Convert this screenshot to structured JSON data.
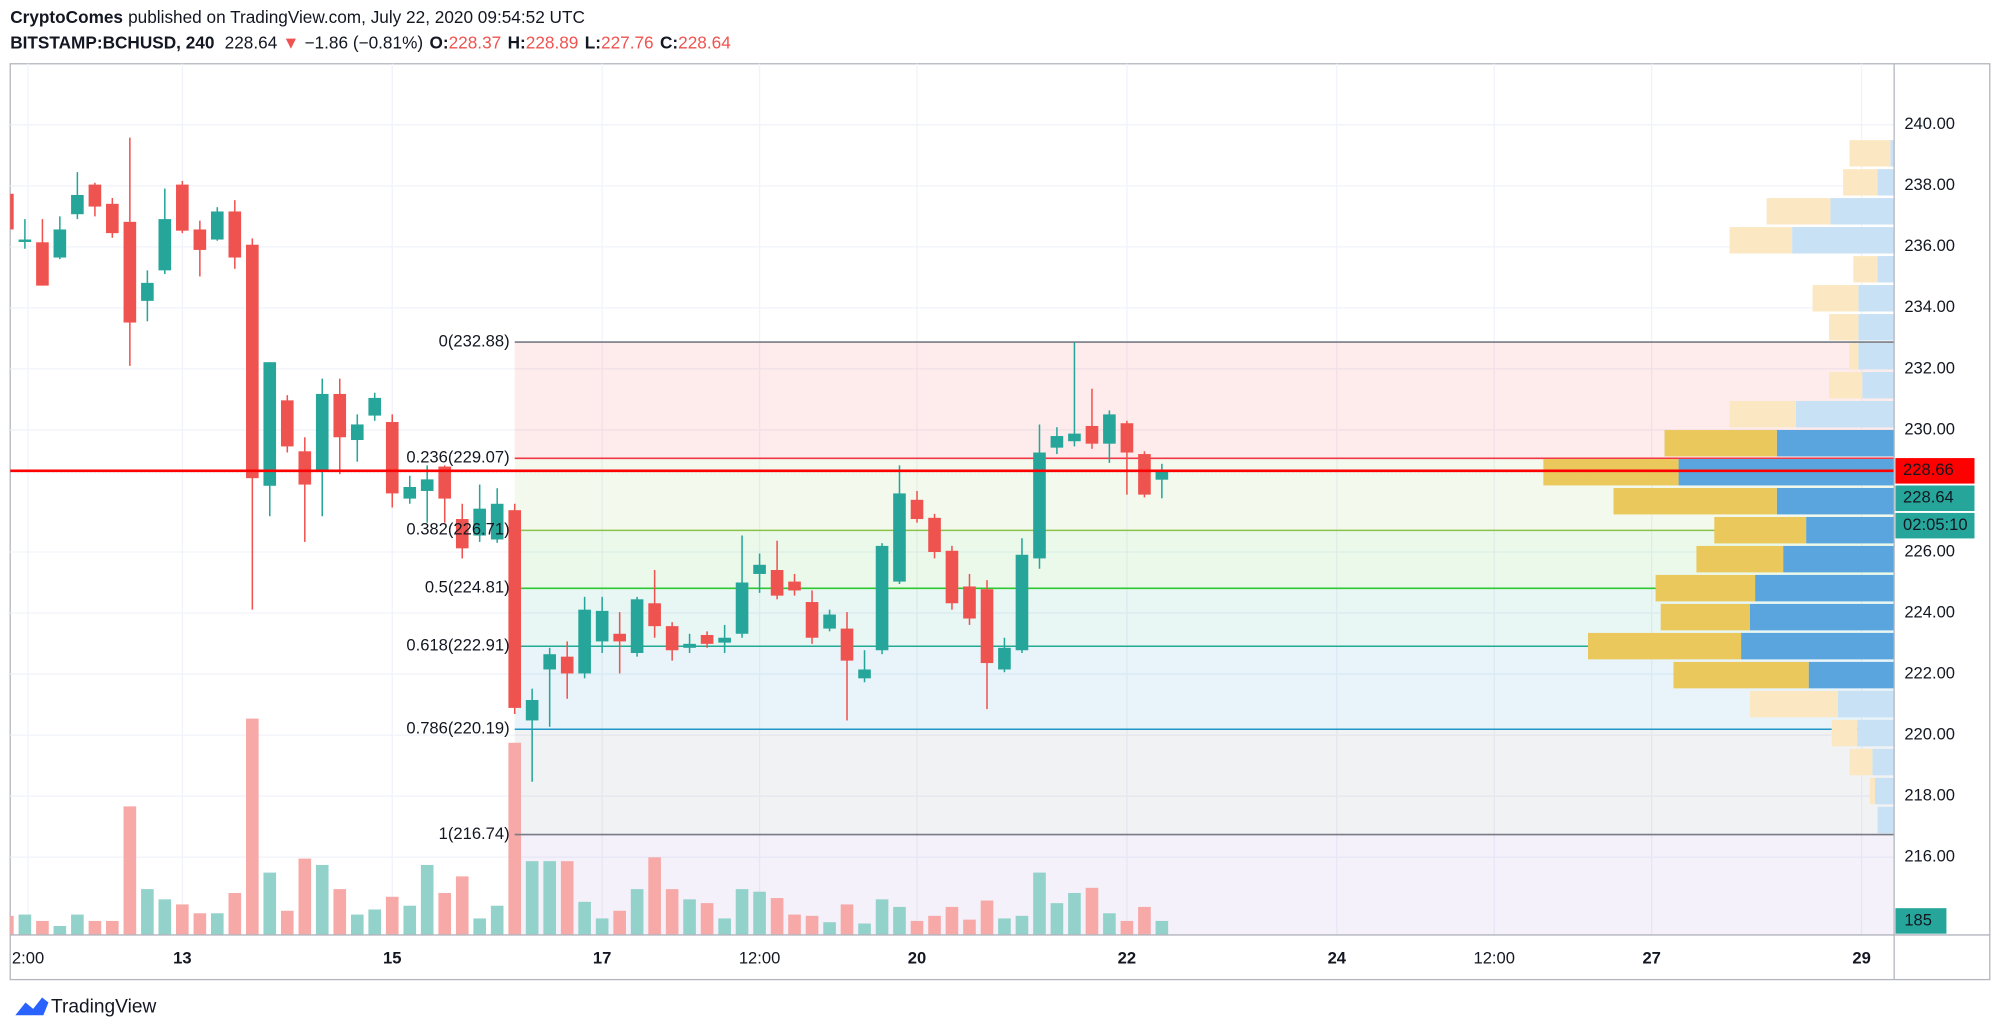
{
  "header": {
    "publisher": "CryptoComes",
    "published": "published on TradingView.com, July 22, 2020 09:54:52 UTC",
    "symbol": "BITSTAMP:BCHUSD, 240",
    "arrow": "▼",
    "change": "−1.86 (−0.81%)",
    "open_label": "O:",
    "high_label": "H:",
    "low_label": "L:",
    "close_label": "C:"
  },
  "footer": {
    "brand": "TradingView"
  },
  "chart_data": {
    "type": "candlestick",
    "x": [
      11.333,
      11.5,
      11.667,
      11.833,
      12,
      12.167,
      12.333,
      12.5,
      12.667,
      12.833,
      13,
      13.167,
      13.333,
      13.5,
      13.667,
      13.833,
      14,
      14.167,
      14.333,
      14.5,
      14.667,
      14.833,
      15,
      15.167,
      15.333,
      15.5,
      15.667,
      15.833,
      16,
      16.167,
      16.333,
      16.5,
      16.667,
      16.833,
      17,
      17.167,
      17.333,
      17.5,
      17.667,
      17.833,
      18,
      18.167,
      18.333,
      18.5,
      18.667,
      18.833,
      19,
      19.167,
      19.333,
      19.5,
      19.667,
      19.833,
      20,
      20.167,
      20.333,
      20.5,
      20.667,
      20.833,
      21,
      21.167,
      21.333,
      21.5,
      21.667,
      21.833,
      22,
      22.167,
      22.333
    ],
    "open": [
      237.74,
      236.16,
      236.15,
      235.65,
      237.07,
      238.04,
      237.41,
      236.82,
      234.23,
      235.23,
      238.04,
      236.57,
      236.24,
      237.16,
      236.07,
      228.17,
      230.97,
      229.3,
      228.63,
      231.18,
      229.67,
      230.47,
      230.26,
      227.75,
      228.0,
      228.8,
      227.08,
      226.54,
      226.41,
      227.37,
      220.48,
      222.15,
      222.57,
      222.02,
      223.07,
      223.32,
      222.69,
      224.32,
      223.57,
      222.86,
      223.28,
      223.03,
      223.32,
      225.28,
      225.41,
      225.03,
      224.36,
      223.49,
      223.49,
      221.86,
      222.78,
      225.03,
      227.71,
      227.12,
      226.04,
      224.87,
      224.78,
      222.15,
      222.78,
      225.79,
      229.42,
      229.63,
      230.13,
      229.55,
      230.22,
      229.21,
      228.37
    ],
    "high": [
      237.8,
      236.91,
      236.91,
      237.0,
      238.45,
      238.1,
      237.6,
      239.58,
      235.23,
      237.91,
      238.16,
      236.86,
      237.3,
      237.53,
      236.28,
      232.22,
      231.14,
      229.76,
      231.68,
      231.68,
      230.51,
      231.22,
      230.51,
      228.5,
      228.84,
      228.84,
      227.58,
      228.21,
      228.09,
      227.58,
      221.52,
      222.86,
      223.07,
      224.53,
      224.53,
      224.03,
      224.53,
      225.41,
      223.7,
      223.32,
      223.4,
      223.61,
      226.54,
      225.95,
      226.37,
      225.28,
      224.74,
      224.11,
      224.03,
      222.78,
      226.29,
      228.84,
      228.0,
      227.25,
      226.2,
      225.28,
      225.08,
      223.19,
      226.45,
      230.18,
      230.09,
      232.88,
      231.35,
      230.64,
      230.3,
      229.3,
      228.89
    ],
    "low": [
      236.5,
      235.94,
      234.73,
      235.6,
      236.91,
      237.0,
      236.3,
      232.1,
      233.56,
      235.11,
      236.45,
      235.03,
      236.2,
      235.28,
      224.11,
      227.17,
      229.26,
      226.33,
      227.17,
      228.55,
      228.96,
      230.3,
      227.46,
      227.58,
      226.96,
      226.96,
      225.79,
      226.33,
      226.3,
      220.69,
      218.47,
      220.27,
      221.19,
      221.86,
      222.69,
      222.02,
      222.57,
      223.19,
      222.44,
      222.69,
      222.86,
      222.69,
      223.19,
      224.66,
      224.45,
      224.57,
      222.99,
      223.4,
      220.48,
      221.73,
      222.65,
      224.95,
      226.96,
      225.79,
      224.11,
      223.61,
      220.85,
      222.06,
      222.69,
      225.45,
      229.21,
      229.46,
      229.38,
      228.92,
      227.88,
      227.79,
      227.76
    ],
    "close": [
      236.57,
      236.24,
      234.73,
      236.57,
      237.7,
      237.32,
      236.45,
      233.52,
      234.82,
      236.91,
      236.53,
      235.9,
      237.16,
      235.65,
      228.42,
      232.22,
      229.46,
      228.21,
      231.18,
      229.76,
      230.18,
      231.05,
      227.92,
      228.13,
      228.38,
      227.75,
      226.12,
      227.42,
      227.58,
      220.89,
      221.15,
      222.65,
      222.02,
      224.11,
      224.07,
      223.07,
      224.45,
      223.57,
      222.78,
      222.99,
      222.99,
      223.19,
      225.0,
      225.58,
      224.57,
      224.74,
      223.19,
      223.95,
      222.44,
      222.15,
      226.2,
      227.92,
      227.08,
      226.0,
      224.32,
      223.82,
      222.36,
      222.86,
      225.91,
      229.26,
      229.8,
      229.88,
      229.55,
      230.51,
      229.26,
      227.88,
      228.64
    ],
    "volume": [
      252,
      269,
      185,
      118,
      269,
      185,
      185,
      1697,
      605,
      470,
      403,
      286,
      286,
      554,
      2856,
      823,
      319,
      1008,
      924,
      605,
      269,
      336,
      504,
      386,
      924,
      554,
      773,
      218,
      386,
      2537,
      974,
      974,
      974,
      437,
      218,
      319,
      605,
      1025,
      605,
      470,
      420,
      218,
      605,
      571,
      487,
      269,
      252,
      168,
      403,
      151,
      470,
      370,
      185,
      252,
      370,
      202,
      454,
      218,
      252,
      823,
      420,
      554,
      622,
      286,
      185,
      370,
      185
    ],
    "up_color": "#26a69a",
    "down_color": "#ef5350",
    "volume_up_color": "#93d2cb",
    "volume_down_color": "#f7a9a7",
    "vlim": [
      0,
      11500
    ],
    "xlim": [
      11.36,
      29.31
    ],
    "xticks": [
      {
        "value": 11.53,
        "label": "2:00"
      },
      13,
      15,
      17,
      {
        "value": 18.5,
        "label": "12:00"
      },
      20,
      22,
      24,
      {
        "value": 25.5,
        "label": "12:00"
      },
      27,
      29
    ],
    "ylim": [
      213.45,
      242.0
    ],
    "yticks": [
      {
        "value": 216,
        "label": "216.00"
      },
      {
        "value": 218,
        "label": "218.00"
      },
      {
        "value": 220,
        "label": "220.00"
      },
      {
        "value": 222,
        "label": "222.00"
      },
      {
        "value": 224,
        "label": "224.00"
      },
      {
        "value": 226,
        "label": "226.00"
      },
      {
        "value": 230,
        "label": "230.00"
      },
      {
        "value": 232,
        "label": "232.00"
      },
      {
        "value": 234,
        "label": "234.00"
      },
      {
        "value": 236,
        "label": "236.00"
      },
      {
        "value": 238,
        "label": "238.00"
      },
      {
        "value": 240,
        "label": "240.00"
      }
    ],
    "grid": true,
    "grid_color": "#f0f3fa",
    "fib": {
      "x": 16.167,
      "extension_color": "#9575cd",
      "levels": [
        {
          "value": 232.88,
          "label": "0(232.88)",
          "color": "#787b86"
        },
        {
          "value": 229.07,
          "label": "0.236(229.07)",
          "color": "#f23645"
        },
        {
          "value": 226.71,
          "label": "0.382(226.71)",
          "color": "#8bc34a"
        },
        {
          "value": 224.81,
          "label": "0.5(224.81)",
          "color": "#2ec830"
        },
        {
          "value": 222.91,
          "label": "0.618(222.91)",
          "color": "#22ab94"
        },
        {
          "value": 220.19,
          "label": "0.786(220.19)",
          "color": "#2196c8"
        },
        {
          "value": 216.74,
          "label": "1(216.74)",
          "color": "#787b86"
        }
      ]
    },
    "price_line": {
      "value": 228.66,
      "color": "#ff0000"
    },
    "countdown": "02:05:10",
    "volume_profile": {
      "start": 216.74,
      "step": 0.95,
      "lim": [
        0,
        1477
      ],
      "value_area": [
        221.49,
        230.04
      ],
      "up": [
        13,
        15,
        17,
        29,
        44,
        67,
        120,
        113,
        109,
        87,
        69,
        92,
        169,
        92,
        77,
        25,
        28,
        28,
        28,
        13,
        80,
        50,
        13,
        3
      ],
      "down": [
        0,
        4,
        18,
        20,
        69,
        106,
        120,
        70,
        78,
        68,
        72,
        128,
        106,
        88,
        52,
        26,
        7,
        23,
        36,
        19,
        49,
        50,
        27,
        32
      ],
      "up_color": "#5aa5dd",
      "down_color": "#ebc85c",
      "up_color_outside": "#c8e1f5",
      "down_color_outside": "#fbe8c3"
    }
  }
}
